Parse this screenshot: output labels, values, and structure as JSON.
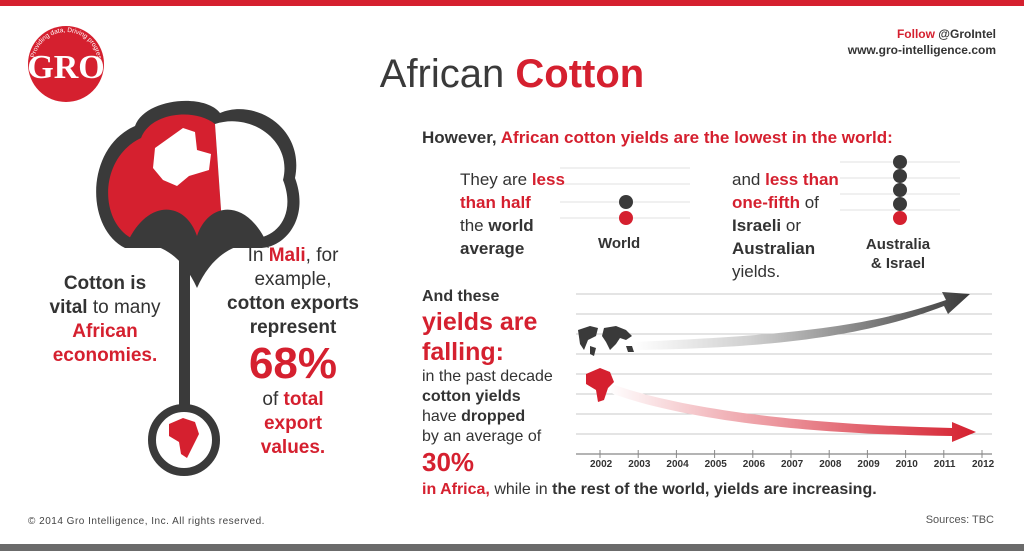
{
  "header": {
    "follow_label": "Follow",
    "follow_handle": "@GroIntel",
    "website": "www.gro-intelligence.com",
    "title_prefix": "African",
    "title_accent": "Cotton"
  },
  "logo": {
    "letters": "GRO",
    "tagline": "Providing data, Driving progress"
  },
  "left_panel": {
    "line1": "Cotton is",
    "line2a": "vital",
    "line2b": " to many",
    "line3": "African",
    "line4": "economies."
  },
  "mali_panel": {
    "in": "In ",
    "country": "Mali",
    "for": ", for",
    "example": "example,",
    "l3": "cotton exports",
    "l4": "represent",
    "percent": "68%",
    "of": "of ",
    "total": "total",
    "export": "export",
    "values": "values."
  },
  "headline": {
    "prefix": "However, ",
    "accent": "African cotton yields are the lowest in the world:"
  },
  "comparison_world": {
    "they_are": "They are ",
    "less": "less",
    "than_half": "than half",
    "the": "the ",
    "world": "world",
    "average": "average",
    "label": "World"
  },
  "comparison_ai": {
    "and": "and ",
    "less_than": "less than",
    "one_fifth": "one-fifth",
    "of": " of",
    "israeli": "Israeli",
    "or": " or",
    "australian": "Australian",
    "yields": "yields.",
    "label_line1": "Australia",
    "label_line2": "& Israel"
  },
  "falling_panel": {
    "intro": "And these",
    "big1": "yields are",
    "big2": "falling:",
    "l1": "in the past decade",
    "l2": "cotton yields",
    "l3a": "have ",
    "l3b": "dropped",
    "l4": "by an average of",
    "percent": "30%"
  },
  "bottom_line": {
    "in_africa": "in Africa,",
    "while": " while in ",
    "rest": "the rest of the world, yields are increasing",
    "period": "."
  },
  "chart_data": {
    "type": "line",
    "x": [
      "2002",
      "2003",
      "2004",
      "2005",
      "2006",
      "2007",
      "2008",
      "2009",
      "2010",
      "2011",
      "2012"
    ],
    "series": [
      {
        "name": "",
        "trend": "increasing"
      },
      {
        "name": "",
        "trend": "decreasing"
      }
    ],
    "grid": true
  },
  "footer": {
    "copyright": "© 2014 Gro Intelligence, Inc. All rights reserved.",
    "sources": "Sources: TBC"
  },
  "colors": {
    "accent": "#d5202f",
    "dark": "#3a3a3a",
    "grid": "#c8c8c8"
  },
  "icons": [
    "gro-logo",
    "cotton-boll-icon",
    "mali-map-icon",
    "africa-map-icon",
    "world-map-icon",
    "dot-stack-icon",
    "arrow-icon"
  ]
}
